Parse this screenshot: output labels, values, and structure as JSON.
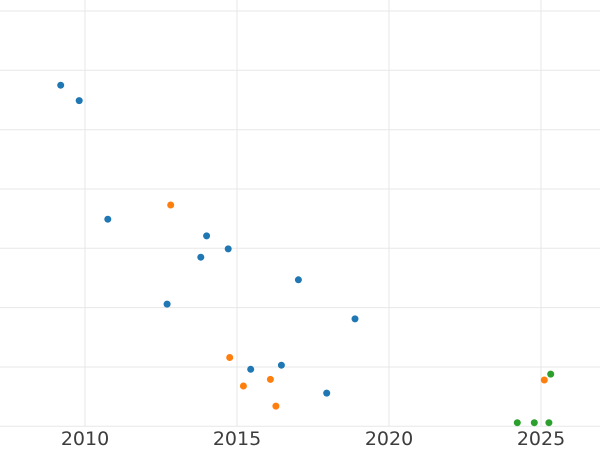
{
  "colors": {
    "background": "#ffffff",
    "grid": "#e7e7e7",
    "tick_label": "#3d3d3d",
    "series_blue": "#1f77b4",
    "series_orange": "#ff7f0e",
    "series_green": "#2ca02c"
  },
  "chart_data": {
    "type": "scatter",
    "title": "",
    "xlabel": "",
    "ylabel": "",
    "grid": true,
    "legend": "none",
    "x_ticks": [
      2010,
      2015,
      2020,
      2025
    ],
    "x_tick_labels": [
      "2010",
      "2015",
      "2020",
      "2025"
    ],
    "x_range_visible": [
      2007.2,
      2026.9
    ],
    "y_axis_note": "y-axis labels cropped out of view; y expressed in gridline units, bottom visible gridline = 0, one unit per gridline",
    "y_gridlines": [
      0,
      1,
      2,
      3,
      4,
      5,
      6,
      7
    ],
    "y_range_visible": [
      0,
      7.2
    ],
    "marker": {
      "shape": "circle",
      "radius_px": 3.5
    },
    "series": [
      {
        "name": "blue",
        "color": "#1f77b4",
        "points": [
          [
            2009.2,
            5.75
          ],
          [
            2009.81,
            5.49
          ],
          [
            2010.75,
            3.49
          ],
          [
            2012.7,
            2.06
          ],
          [
            2013.81,
            2.85
          ],
          [
            2014.0,
            3.21
          ],
          [
            2014.71,
            2.99
          ],
          [
            2015.45,
            0.96
          ],
          [
            2016.46,
            1.03
          ],
          [
            2017.02,
            2.47
          ],
          [
            2017.95,
            0.56
          ],
          [
            2018.88,
            1.81
          ]
        ]
      },
      {
        "name": "orange",
        "color": "#ff7f0e",
        "points": [
          [
            2012.82,
            3.73
          ],
          [
            2014.76,
            1.16
          ],
          [
            2015.21,
            0.68
          ],
          [
            2016.1,
            0.79
          ],
          [
            2016.28,
            0.34
          ],
          [
            2025.11,
            0.78
          ]
        ]
      },
      {
        "name": "green",
        "color": "#2ca02c",
        "points": [
          [
            2024.22,
            0.06
          ],
          [
            2024.78,
            0.06
          ],
          [
            2025.26,
            0.06
          ],
          [
            2025.32,
            0.88
          ]
        ]
      }
    ]
  }
}
